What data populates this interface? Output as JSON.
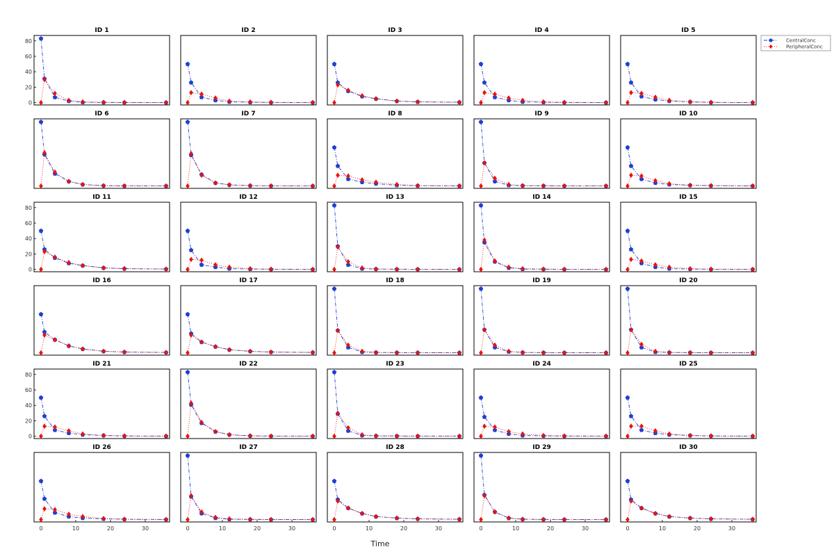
{
  "chart_data": {
    "type": "line",
    "layout": {
      "rows": 6,
      "cols": 5
    },
    "xlabel": "Time",
    "ylabel": "",
    "xlim": [
      -2,
      37
    ],
    "ylim": [
      -3,
      87
    ],
    "xticks": [
      0,
      10,
      20,
      30
    ],
    "yticks": [
      0,
      20,
      40,
      60,
      80
    ],
    "legend": {
      "placement": "top-right-outside",
      "entries": [
        "CentralConc",
        "PeripheralConc"
      ]
    },
    "colors": {
      "CentralConc": "#1f3fd0",
      "PeripheralConc": "#e8140c"
    },
    "time_points": [
      0,
      1,
      4,
      8,
      12,
      18,
      24,
      36
    ],
    "panels": [
      {
        "title": "ID 1",
        "series": [
          {
            "name": "CentralConc",
            "values": [
              83,
              31,
              7,
              2,
              0.5,
              0.3,
              0.2,
              0.1
            ]
          },
          {
            "name": "PeripheralConc",
            "values": [
              0,
              30,
              12,
              3,
              1,
              0.5,
              0.3,
              0.2
            ]
          }
        ]
      },
      {
        "title": "ID 2",
        "series": [
          {
            "name": "CentralConc",
            "values": [
              50,
              26,
              7,
              3,
              1,
              0.5,
              0.2,
              0.1
            ]
          },
          {
            "name": "PeripheralConc",
            "values": [
              0,
              13,
              11,
              6,
              2,
              1,
              0.5,
              0.2
            ]
          }
        ]
      },
      {
        "title": "ID 3",
        "series": [
          {
            "name": "CentralConc",
            "values": [
              50,
              26,
              15,
              8,
              5,
              2,
              1,
              0.5
            ]
          },
          {
            "name": "PeripheralConc",
            "values": [
              0,
              23,
              16,
              9,
              5,
              2,
              1,
              0.5
            ]
          }
        ]
      },
      {
        "title": "ID 4",
        "series": [
          {
            "name": "CentralConc",
            "values": [
              50,
              26,
              7,
              3,
              1,
              0.5,
              0.2,
              0.1
            ]
          },
          {
            "name": "PeripheralConc",
            "values": [
              0,
              13,
              11,
              6,
              3,
              1,
              0.5,
              0.2
            ]
          }
        ]
      },
      {
        "title": "ID 5",
        "series": [
          {
            "name": "CentralConc",
            "values": [
              50,
              26,
              8,
              4,
              2,
              1,
              0.3,
              0.1
            ]
          },
          {
            "name": "PeripheralConc",
            "values": [
              0,
              13,
              12,
              7,
              3,
              1,
              0.5,
              0.2
            ]
          }
        ]
      },
      {
        "title": "ID 6",
        "series": [
          {
            "name": "CentralConc",
            "values": [
              83,
              41,
              16,
              6,
              2,
              0.5,
              0.2,
              0.1
            ]
          },
          {
            "name": "PeripheralConc",
            "values": [
              0,
              43,
              18,
              6,
              2,
              0.5,
              0.2,
              0.1
            ]
          }
        ]
      },
      {
        "title": "ID 7",
        "series": [
          {
            "name": "CentralConc",
            "values": [
              83,
              40,
              15,
              4,
              1.5,
              0.5,
              0.2,
              0.1
            ]
          },
          {
            "name": "PeripheralConc",
            "values": [
              0,
              42,
              14,
              4,
              1.5,
              0.5,
              0.2,
              0.1
            ]
          }
        ]
      },
      {
        "title": "ID 8",
        "series": [
          {
            "name": "CentralConc",
            "values": [
              50,
              26,
              9,
              5,
              3,
              1,
              0.5,
              0.2
            ]
          },
          {
            "name": "PeripheralConc",
            "values": [
              0,
              14,
              13,
              8,
              5,
              2,
              0.5,
              0.2
            ]
          }
        ]
      },
      {
        "title": "ID 9",
        "series": [
          {
            "name": "CentralConc",
            "values": [
              83,
              30,
              6,
              1,
              0.5,
              0.3,
              0.2,
              0.1
            ]
          },
          {
            "name": "PeripheralConc",
            "values": [
              0,
              30,
              10,
              2,
              0.5,
              0.3,
              0.2,
              0.1
            ]
          }
        ]
      },
      {
        "title": "ID 10",
        "series": [
          {
            "name": "CentralConc",
            "values": [
              50,
              26,
              9,
              4,
              2,
              1,
              0.5,
              0.2
            ]
          },
          {
            "name": "PeripheralConc",
            "values": [
              0,
              14,
              13,
              7,
              3,
              1,
              0.5,
              0.2
            ]
          }
        ]
      },
      {
        "title": "ID 11",
        "series": [
          {
            "name": "CentralConc",
            "values": [
              50,
              26,
              15,
              8,
              5,
              2,
              1,
              0.5
            ]
          },
          {
            "name": "PeripheralConc",
            "values": [
              0,
              23,
              16,
              9,
              5,
              2,
              1,
              0.5
            ]
          }
        ]
      },
      {
        "title": "ID 12",
        "series": [
          {
            "name": "CentralConc",
            "values": [
              50,
              25,
              6,
              3,
              1,
              0.5,
              0.2,
              0.1
            ]
          },
          {
            "name": "PeripheralConc",
            "values": [
              0,
              13,
              12,
              6,
              3,
              1,
              0.5,
              0.2
            ]
          }
        ]
      },
      {
        "title": "ID 13",
        "series": [
          {
            "name": "CentralConc",
            "values": [
              83,
              30,
              6,
              1,
              0.5,
              0.3,
              0.2,
              0.1
            ]
          },
          {
            "name": "PeripheralConc",
            "values": [
              0,
              29,
              10,
              2,
              0.5,
              0.3,
              0.2,
              0.1
            ]
          }
        ]
      },
      {
        "title": "ID 14",
        "series": [
          {
            "name": "CentralConc",
            "values": [
              83,
              35,
              10,
              2,
              0.5,
              0.3,
              0.2,
              0.1
            ]
          },
          {
            "name": "PeripheralConc",
            "values": [
              0,
              38,
              11,
              3,
              1,
              0.5,
              0.2,
              0.1
            ]
          }
        ]
      },
      {
        "title": "ID 15",
        "series": [
          {
            "name": "CentralConc",
            "values": [
              50,
              26,
              8,
              3,
              1,
              0.5,
              0.2,
              0.1
            ]
          },
          {
            "name": "PeripheralConc",
            "values": [
              0,
              13,
              11,
              6,
              3,
              1,
              0.5,
              0.2
            ]
          }
        ]
      },
      {
        "title": "ID 16",
        "series": [
          {
            "name": "CentralConc",
            "values": [
              50,
              27,
              17,
              9,
              5,
              2,
              1,
              0.5
            ]
          },
          {
            "name": "PeripheralConc",
            "values": [
              0,
              23,
              17,
              9,
              5,
              2,
              1,
              0.5
            ]
          }
        ]
      },
      {
        "title": "ID 17",
        "series": [
          {
            "name": "CentralConc",
            "values": [
              50,
              25,
              14,
              8,
              4,
              2,
              1,
              0.5
            ]
          },
          {
            "name": "PeripheralConc",
            "values": [
              0,
              23,
              14,
              8,
              4,
              2,
              1,
              0.5
            ]
          }
        ]
      },
      {
        "title": "ID 18",
        "series": [
          {
            "name": "CentralConc",
            "values": [
              83,
              29,
              7,
              1,
              0.5,
              0.3,
              0.2,
              0.1
            ]
          },
          {
            "name": "PeripheralConc",
            "values": [
              0,
              29,
              10,
              2,
              0.5,
              0.3,
              0.2,
              0.1
            ]
          }
        ]
      },
      {
        "title": "ID 19",
        "series": [
          {
            "name": "CentralConc",
            "values": [
              83,
              30,
              7,
              1.5,
              0.5,
              0.3,
              0.2,
              0.1
            ]
          },
          {
            "name": "PeripheralConc",
            "values": [
              0,
              30,
              10,
              2,
              0.5,
              0.3,
              0.2,
              0.1
            ]
          }
        ]
      },
      {
        "title": "ID 20",
        "series": [
          {
            "name": "CentralConc",
            "values": [
              83,
              30,
              7,
              1,
              0.5,
              0.3,
              0.2,
              0.1
            ]
          },
          {
            "name": "PeripheralConc",
            "values": [
              0,
              30,
              11,
              2,
              0.5,
              0.3,
              0.2,
              0.1
            ]
          }
        ]
      },
      {
        "title": "ID 21",
        "series": [
          {
            "name": "CentralConc",
            "values": [
              50,
              26,
              8,
              4,
              2,
              1,
              0.3,
              0.1
            ]
          },
          {
            "name": "PeripheralConc",
            "values": [
              0,
              13,
              12,
              7,
              3,
              1,
              0.5,
              0.2
            ]
          }
        ]
      },
      {
        "title": "ID 22",
        "series": [
          {
            "name": "CentralConc",
            "values": [
              83,
              41,
              17,
              6,
              2,
              0.5,
              0.2,
              0.1
            ]
          },
          {
            "name": "PeripheralConc",
            "values": [
              0,
              43,
              18,
              6,
              2,
              0.5,
              0.2,
              0.1
            ]
          }
        ]
      },
      {
        "title": "ID 23",
        "series": [
          {
            "name": "CentralConc",
            "values": [
              83,
              29,
              7,
              1,
              0.5,
              0.3,
              0.2,
              0.1
            ]
          },
          {
            "name": "PeripheralConc",
            "values": [
              0,
              30,
              11,
              2,
              0.5,
              0.3,
              0.2,
              0.1
            ]
          }
        ]
      },
      {
        "title": "ID 24",
        "series": [
          {
            "name": "CentralConc",
            "values": [
              50,
              25,
              8,
              3,
              1,
              0.5,
              0.2,
              0.1
            ]
          },
          {
            "name": "PeripheralConc",
            "values": [
              0,
              13,
              12,
              6,
              3,
              1,
              0.5,
              0.2
            ]
          }
        ]
      },
      {
        "title": "ID 25",
        "series": [
          {
            "name": "CentralConc",
            "values": [
              50,
              26,
              8,
              4,
              2,
              1,
              0.3,
              0.1
            ]
          },
          {
            "name": "PeripheralConc",
            "values": [
              0,
              13,
              13,
              7,
              3,
              1,
              0.5,
              0.2
            ]
          }
        ]
      },
      {
        "title": "ID 26",
        "series": [
          {
            "name": "CentralConc",
            "values": [
              50,
              27,
              9,
              4,
              2,
              1,
              0.5,
              0.2
            ]
          },
          {
            "name": "PeripheralConc",
            "values": [
              0,
              14,
              13,
              7,
              4,
              1.5,
              0.5,
              0.2
            ]
          }
        ]
      },
      {
        "title": "ID 27",
        "series": [
          {
            "name": "CentralConc",
            "values": [
              83,
              30,
              8,
              2,
              0.5,
              0.3,
              0.2,
              0.1
            ]
          },
          {
            "name": "PeripheralConc",
            "values": [
              0,
              31,
              10,
              3,
              1,
              0.5,
              0.3,
              0.2
            ]
          }
        ]
      },
      {
        "title": "ID 28",
        "series": [
          {
            "name": "CentralConc",
            "values": [
              50,
              26,
              15,
              8,
              4,
              2,
              1,
              0.5
            ]
          },
          {
            "name": "PeripheralConc",
            "values": [
              0,
              24,
              15,
              8,
              4,
              2,
              1,
              0.5
            ]
          }
        ]
      },
      {
        "title": "ID 29",
        "series": [
          {
            "name": "CentralConc",
            "values": [
              83,
              32,
              10,
              2,
              0.5,
              0.3,
              0.2,
              0.1
            ]
          },
          {
            "name": "PeripheralConc",
            "values": [
              0,
              31,
              10,
              2,
              0.5,
              0.3,
              0.2,
              0.1
            ]
          }
        ]
      },
      {
        "title": "ID 30",
        "series": [
          {
            "name": "CentralConc",
            "values": [
              50,
              26,
              15,
              8,
              4,
              2,
              1,
              0.5
            ]
          },
          {
            "name": "PeripheralConc",
            "values": [
              0,
              24,
              15,
              8,
              4,
              2,
              1,
              0.5
            ]
          }
        ]
      }
    ]
  }
}
